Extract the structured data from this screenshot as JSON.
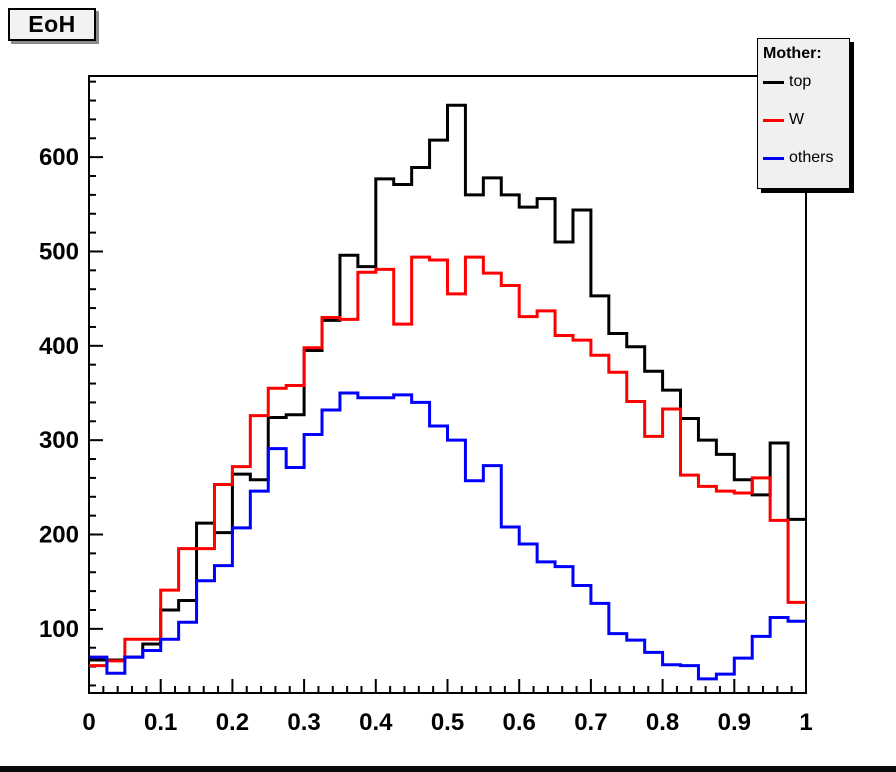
{
  "title": "EoH",
  "legend": {
    "title": "Mother:",
    "entries": [
      {
        "label": "top",
        "color": "#000000"
      },
      {
        "label": "W",
        "color": "#ff0000"
      },
      {
        "label": "others",
        "color": "#0000ff"
      }
    ]
  },
  "chart_data": {
    "type": "step-histogram",
    "title": "EoH",
    "xlabel": "",
    "ylabel": "",
    "grid": false,
    "legend_position": "top-right",
    "x_start": 0,
    "bin_width": 0.025,
    "n_bins": 40,
    "xlim": [
      0,
      1
    ],
    "ylim": [
      32,
      686
    ],
    "x_major_ticks": [
      0,
      0.1,
      0.2,
      0.3,
      0.4,
      0.5,
      0.6,
      0.7,
      0.8,
      0.9,
      1
    ],
    "x_tick_labels": [
      "0",
      "0.1",
      "0.2",
      "0.3",
      "0.4",
      "0.5",
      "0.6",
      "0.7",
      "0.8",
      "0.9",
      "1"
    ],
    "x_minor_step": 0.02,
    "y_major_ticks": [
      100,
      200,
      300,
      400,
      500,
      600
    ],
    "y_tick_labels": [
      "100",
      "200",
      "300",
      "400",
      "500",
      "600"
    ],
    "y_minor_step": 20,
    "series": [
      {
        "name": "top",
        "color": "#000000",
        "values": [
          67,
          67,
          70,
          84,
          120,
          130,
          212,
          202,
          264,
          258,
          324,
          327,
          395,
          427,
          496,
          484,
          577,
          571,
          589,
          618,
          655,
          560,
          578,
          560,
          547,
          556,
          510,
          544,
          453,
          413,
          399,
          373,
          353,
          323,
          300,
          285,
          258,
          242,
          297,
          216
        ]
      },
      {
        "name": "W",
        "color": "#ff0000",
        "values": [
          61,
          66,
          89,
          89,
          141,
          185,
          185,
          253,
          272,
          326,
          355,
          358,
          398,
          430,
          428,
          478,
          481,
          423,
          494,
          491,
          455,
          494,
          477,
          464,
          431,
          437,
          411,
          406,
          390,
          372,
          341,
          304,
          333,
          263,
          251,
          246,
          244,
          260,
          215,
          128
        ]
      },
      {
        "name": "others",
        "color": "#0000ff",
        "values": [
          70,
          53,
          70,
          77,
          89,
          107,
          151,
          167,
          207,
          246,
          291,
          271,
          306,
          332,
          350,
          345,
          345,
          348,
          340,
          315,
          300,
          257,
          273,
          208,
          190,
          171,
          166,
          146,
          127,
          95,
          88,
          75,
          62,
          61,
          47,
          52,
          69,
          92,
          112,
          108
        ]
      }
    ]
  }
}
